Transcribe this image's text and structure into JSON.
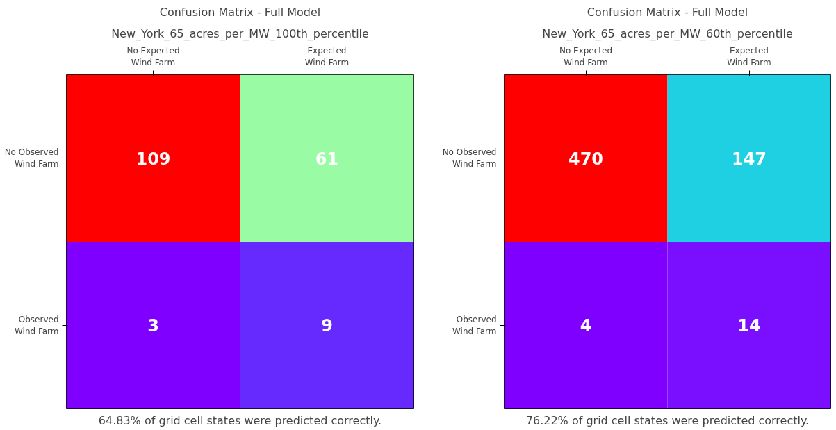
{
  "chart_data": [
    {
      "type": "heatmap",
      "title": "Confusion Matrix - Full Model",
      "subtitle": "New_York_65_acres_per_MW_100th_percentile",
      "categories": [
        "No Expected\nWind Farm",
        "Expected\nWind Farm"
      ],
      "y_categories": [
        "No Observed\nWind Farm",
        "Observed\nWind Farm"
      ],
      "cells": [
        [
          109,
          61
        ],
        [
          3,
          9
        ]
      ],
      "colors": [
        [
          "#ff0000",
          "#99fca4"
        ],
        [
          "#7f00ff",
          "#6629fe"
        ]
      ],
      "data_labels": true,
      "annotations": [
        "64.83% of grid cell states were predicted correctly."
      ]
    },
    {
      "type": "heatmap",
      "title": "Confusion Matrix - Full Model",
      "subtitle": "New_York_65_acres_per_MW_60th_percentile",
      "categories": [
        "No Expected\nWind Farm",
        "Expected\nWind Farm"
      ],
      "y_categories": [
        "No Observed\nWind Farm",
        "Observed\nWind Farm"
      ],
      "cells": [
        [
          470,
          147
        ],
        [
          4,
          14
        ]
      ],
      "colors": [
        [
          "#ff0000",
          "#1fd0e2"
        ],
        [
          "#7f00ff",
          "#7a0fff"
        ]
      ],
      "data_labels": true,
      "annotations": [
        "76.22% of grid cell states were predicted correctly."
      ]
    }
  ]
}
